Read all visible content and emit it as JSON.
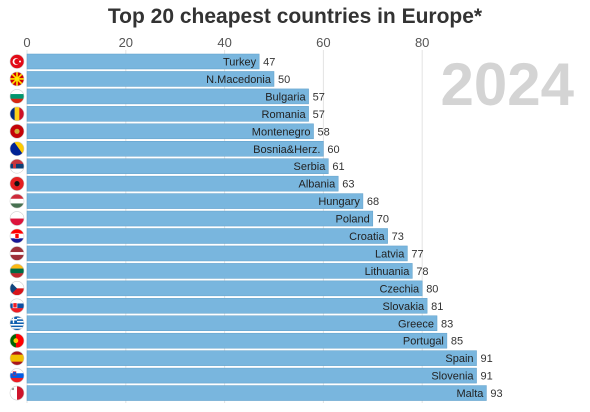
{
  "colors": {
    "bar": "#79b6de",
    "bar_edge": "#5f9fc9",
    "grid": "#e3e3e3",
    "title": "#333333",
    "year": "#d4d4d4"
  },
  "chart_data": {
    "type": "bar",
    "orientation": "horizontal",
    "title": "Top 20 cheapest countries in Europe*",
    "xlabel": "",
    "ylabel": "",
    "xlim": [
      0,
      95
    ],
    "x_ticks": [
      0,
      20,
      40,
      60,
      80
    ],
    "grid": true,
    "annotation": "2024",
    "categories": [
      "Turkey",
      "N.Macedonia",
      "Bulgaria",
      "Romania",
      "Montenegro",
      "Bosnia&Herz.",
      "Serbia",
      "Albania",
      "Hungary",
      "Poland",
      "Croatia",
      "Latvia",
      "Lithuania",
      "Czechia",
      "Slovakia",
      "Greece",
      "Portugal",
      "Spain",
      "Slovenia",
      "Malta"
    ],
    "values": [
      47,
      50,
      57,
      57,
      58,
      60,
      61,
      63,
      68,
      70,
      73,
      77,
      78,
      80,
      81,
      83,
      85,
      91,
      91,
      93
    ],
    "flag_icons": [
      "flag-turkey-icon",
      "flag-north-macedonia-icon",
      "flag-bulgaria-icon",
      "flag-romania-icon",
      "flag-montenegro-icon",
      "flag-bosnia-icon",
      "flag-serbia-icon",
      "flag-albania-icon",
      "flag-hungary-icon",
      "flag-poland-icon",
      "flag-croatia-icon",
      "flag-latvia-icon",
      "flag-lithuania-icon",
      "flag-czechia-icon",
      "flag-slovakia-icon",
      "flag-greece-icon",
      "flag-portugal-icon",
      "flag-spain-icon",
      "flag-slovenia-icon",
      "flag-malta-icon"
    ]
  }
}
